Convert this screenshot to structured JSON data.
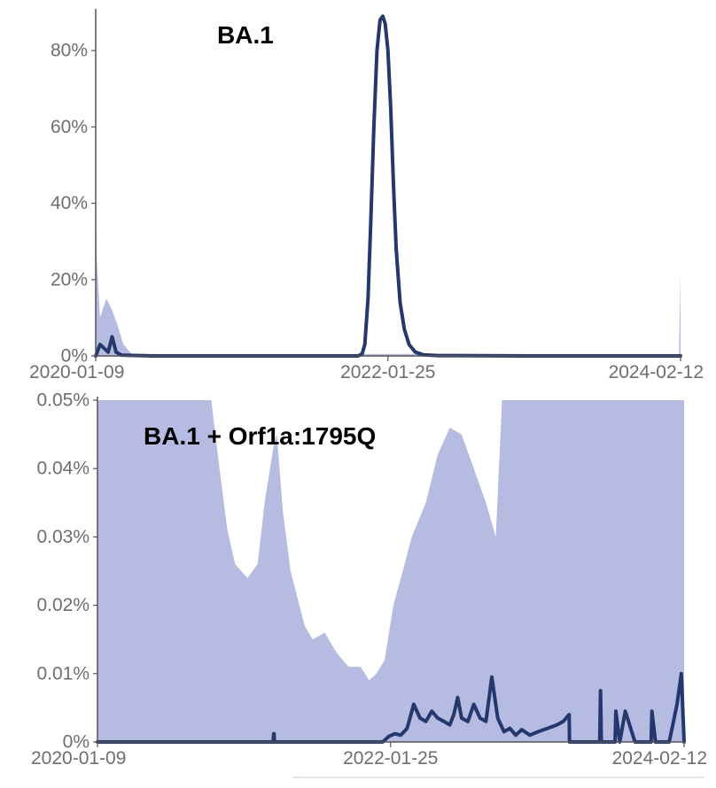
{
  "chart_data": [
    {
      "type": "area",
      "title": "BA.1",
      "x_ticks": [
        "2020-01-09",
        "2022-01-25",
        "2024-02-12"
      ],
      "y_ticks": [
        "0%",
        "20%",
        "40%",
        "60%",
        "80%"
      ],
      "xlim": [
        "2020-01-09",
        "2024-02-12"
      ],
      "ylim": [
        0,
        90
      ],
      "y_unit": "%",
      "grid": false,
      "colors": {
        "line": "#25386d",
        "band": "#b5bbe1"
      },
      "series": [
        {
          "type": "line",
          "x": [
            "2020-01-09",
            "2020-01-20",
            "2020-02-10",
            "2020-02-20",
            "2020-03-01",
            "2020-03-15",
            "2020-06-01",
            "2021-06-01",
            "2021-11-10",
            "2021-11-20",
            "2021-11-27",
            "2021-12-05",
            "2021-12-12",
            "2021-12-20",
            "2021-12-28",
            "2022-01-05",
            "2022-01-12",
            "2022-01-18",
            "2022-01-25",
            "2022-02-01",
            "2022-02-08",
            "2022-02-15",
            "2022-02-25",
            "2022-03-08",
            "2022-03-20",
            "2022-04-05",
            "2022-04-25",
            "2022-06-01",
            "2023-01-01",
            "2024-02-12"
          ],
          "y": [
            0,
            3,
            1,
            5,
            1,
            0.2,
            0,
            0,
            0,
            0.5,
            3,
            15,
            35,
            60,
            80,
            88,
            89,
            87,
            80,
            65,
            45,
            28,
            14,
            7,
            3,
            1,
            0.3,
            0.1,
            0,
            0
          ]
        },
        {
          "type": "band",
          "x": [
            "2020-01-09",
            "2020-01-12",
            "2020-01-20",
            "2020-02-05",
            "2020-02-20",
            "2020-03-05",
            "2020-03-20",
            "2020-04-10",
            "2024-02-08",
            "2024-02-12"
          ],
          "upper": [
            45,
            25,
            10,
            15,
            12,
            8,
            3,
            0.5,
            0.5,
            22
          ]
        }
      ]
    },
    {
      "type": "area",
      "title": "BA.1 + Orf1a:1795Q",
      "x_ticks": [
        "2020-01-09",
        "2022-01-25",
        "2024-02-12"
      ],
      "y_ticks": [
        "0%",
        "0.01%",
        "0.02%",
        "0.03%",
        "0.04%",
        "0.05%"
      ],
      "xlim": [
        "2020-01-09",
        "2024-02-12"
      ],
      "ylim": [
        0,
        0.05
      ],
      "y_unit": "%",
      "grid": false,
      "colors": {
        "line": "#25386d",
        "band": "#b5bbe1"
      },
      "series": [
        {
          "type": "band",
          "x": [
            "2020-01-09",
            "2020-10-25",
            "2020-11-15",
            "2020-12-05",
            "2020-12-25",
            "2021-01-25",
            "2021-02-20",
            "2021-03-10",
            "2021-04-01",
            "2021-04-10",
            "2021-04-25",
            "2021-05-15",
            "2021-06-20",
            "2021-07-10",
            "2021-08-10",
            "2021-09-10",
            "2021-10-10",
            "2021-11-10",
            "2021-12-01",
            "2021-12-20",
            "2022-01-10",
            "2022-02-01",
            "2022-02-25",
            "2022-03-20",
            "2022-04-25",
            "2022-05-25",
            "2022-06-25",
            "2022-07-25",
            "2022-08-25",
            "2022-09-25",
            "2022-10-20",
            "2022-11-01",
            "2022-11-05",
            "2024-02-12"
          ],
          "upper": [
            0.05,
            0.05,
            0.04,
            0.031,
            0.026,
            0.024,
            0.026,
            0.035,
            0.043,
            0.045,
            0.034,
            0.025,
            0.017,
            0.015,
            0.016,
            0.013,
            0.011,
            0.011,
            0.009,
            0.01,
            0.012,
            0.02,
            0.025,
            0.03,
            0.035,
            0.042,
            0.046,
            0.045,
            0.04,
            0.035,
            0.03,
            0.045,
            0.05,
            0.05
          ]
        },
        {
          "type": "line",
          "x": [
            "2020-01-09",
            "2021-04-01",
            "2021-04-02",
            "2021-04-03",
            "2021-04-04",
            "2022-01-05",
            "2022-01-20",
            "2022-02-05",
            "2022-02-20",
            "2022-03-08",
            "2022-03-25",
            "2022-04-10",
            "2022-04-25",
            "2022-05-10",
            "2022-05-25",
            "2022-06-10",
            "2022-06-25",
            "2022-07-05",
            "2022-07-15",
            "2022-07-25",
            "2022-08-10",
            "2022-08-25",
            "2022-09-10",
            "2022-09-25",
            "2022-10-10",
            "2022-10-25",
            "2022-11-10",
            "2022-11-25",
            "2022-12-10",
            "2022-12-25",
            "2023-01-15",
            "2023-02-05",
            "2023-03-01",
            "2023-03-25",
            "2023-04-10",
            "2023-04-25",
            "2023-04-26",
            "2023-06-01",
            "2023-07-12",
            "2023-07-14",
            "2023-07-16",
            "2023-08-01",
            "2023-08-20",
            "2023-08-22",
            "2023-09-01",
            "2023-09-15",
            "2023-10-10",
            "2023-11-20",
            "2023-11-22",
            "2023-12-01",
            "2024-01-05",
            "2024-01-25",
            "2024-02-05",
            "2024-02-12"
          ],
          "y": [
            0,
            0,
            0.0012,
            0.0012,
            0,
            0,
            0.0008,
            0.0012,
            0.001,
            0.002,
            0.0055,
            0.0035,
            0.003,
            0.0045,
            0.0035,
            0.003,
            0.0025,
            0.004,
            0.0065,
            0.0035,
            0.003,
            0.0055,
            0.0035,
            0.003,
            0.0095,
            0.0035,
            0.0015,
            0.002,
            0.001,
            0.0018,
            0.001,
            0.0015,
            0.002,
            0.0025,
            0.003,
            0.004,
            0,
            0,
            0,
            0.0075,
            0,
            0,
            0,
            0.0045,
            0,
            0.0045,
            0,
            0,
            0.0045,
            0,
            0,
            0.0055,
            0.01,
            0
          ]
        }
      ]
    }
  ]
}
